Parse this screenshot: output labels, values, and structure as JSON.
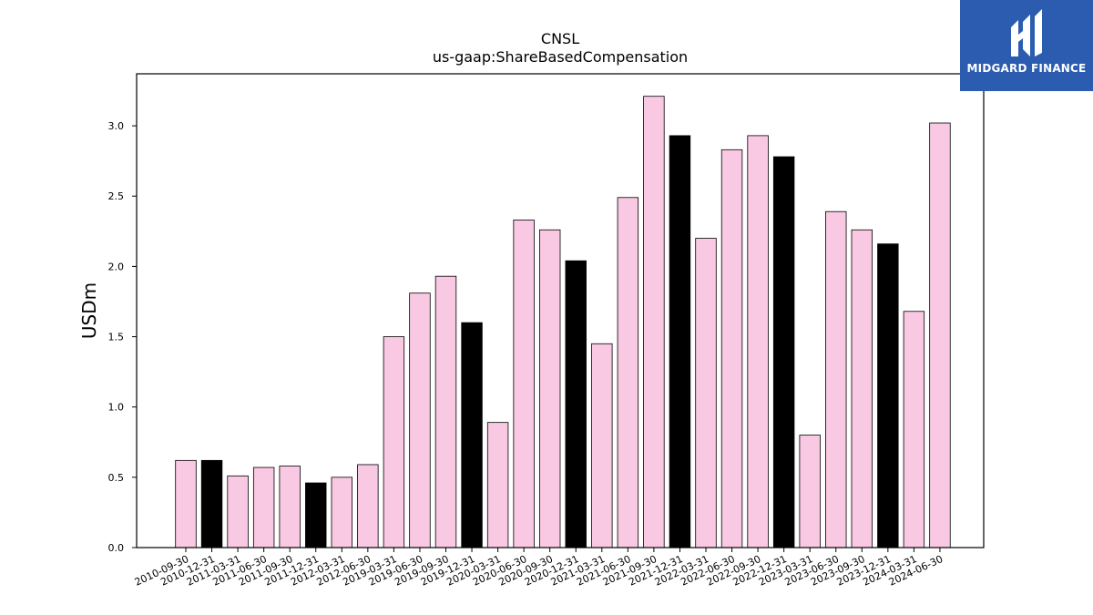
{
  "chart_data": {
    "type": "bar",
    "title": "CNSL",
    "subtitle": "us-gaap:ShareBasedCompensation",
    "xlabel": "",
    "ylabel": "USDm",
    "ylim": [
      0,
      3.37
    ],
    "yticks": [
      "0.0",
      "0.5",
      "1.0",
      "1.5",
      "2.0",
      "2.5",
      "3.0"
    ],
    "grid": false,
    "colors": {
      "quarter": "#f9c8e2",
      "year_end": "#000000",
      "edge": "#000000"
    },
    "categories": [
      "2010-09-30",
      "2010-12-31",
      "2011-03-31",
      "2011-06-30",
      "2011-09-30",
      "2011-12-31",
      "2012-03-31",
      "2012-06-30",
      "2019-03-31",
      "2019-06-30",
      "2019-09-30",
      "2019-12-31",
      "2020-03-31",
      "2020-06-30",
      "2020-09-30",
      "2020-12-31",
      "2021-03-31",
      "2021-06-30",
      "2021-09-30",
      "2021-12-31",
      "2022-03-31",
      "2022-06-30",
      "2022-09-30",
      "2022-12-31",
      "2023-03-31",
      "2023-06-30",
      "2023-09-30",
      "2023-12-31",
      "2024-03-31",
      "2024-06-30"
    ],
    "values": [
      0.62,
      0.62,
      0.51,
      0.57,
      0.58,
      0.46,
      0.5,
      0.59,
      1.5,
      1.81,
      1.93,
      1.6,
      0.89,
      2.33,
      2.26,
      2.04,
      1.45,
      2.49,
      3.21,
      2.93,
      2.2,
      2.83,
      2.93,
      2.78,
      0.8,
      2.39,
      2.26,
      2.16,
      1.68,
      3.02
    ]
  },
  "logo": {
    "text": "MIDGARD FINANCE",
    "icon": "midgard-logo-icon",
    "background": "#2b5cb0"
  }
}
